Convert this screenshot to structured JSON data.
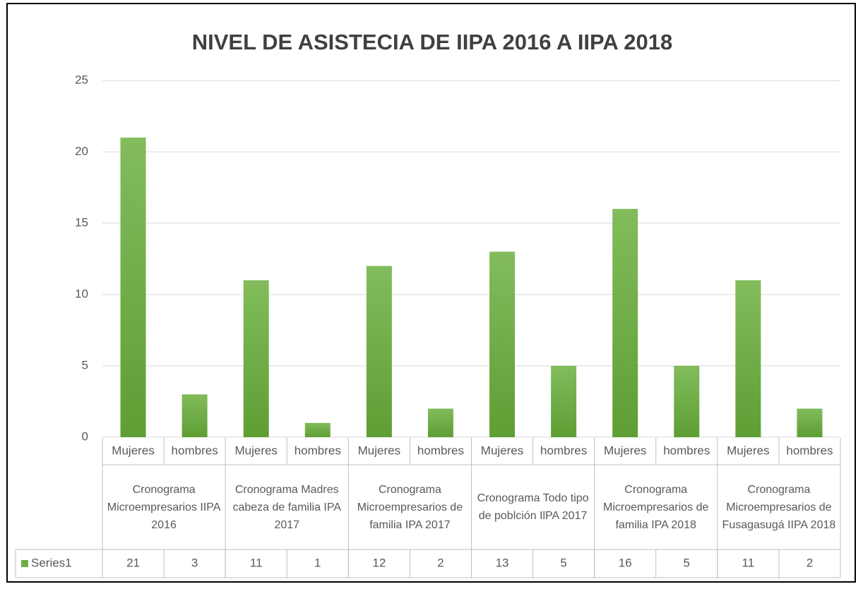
{
  "chart_data": {
    "type": "bar",
    "title": "NIVEL DE ASISTECIA DE IIPA 2016 A IIPA 2018",
    "groups": [
      {
        "name": "Cronograma Microempresarios IIPA 2016",
        "categories": [
          "Mujeres",
          "hombres"
        ]
      },
      {
        "name": "Cronograma Madres cabeza de familia IPA 2017",
        "categories": [
          "Mujeres",
          "hombres"
        ]
      },
      {
        "name": "Cronograma Microempresarios de familia IPA 2017",
        "categories": [
          "Mujeres",
          "hombres"
        ]
      },
      {
        "name": "Cronograma Todo tipo de poblción IlPA 2017",
        "categories": [
          "Mujeres",
          "hombres"
        ]
      },
      {
        "name": "Cronograma Microempresarios de familia IPA 2018",
        "categories": [
          "Mujeres",
          "hombres"
        ]
      },
      {
        "name": "Cronograma Microempresarios de Fusagasugá IIPA 2018",
        "categories": [
          "Mujeres",
          "hombres"
        ]
      }
    ],
    "series": [
      {
        "name": "Series1",
        "color": "#70ad47",
        "values": [
          21,
          3,
          11,
          1,
          12,
          2,
          13,
          5,
          16,
          5,
          11,
          2
        ]
      }
    ],
    "ylim": [
      0,
      25
    ],
    "yticks": [
      0,
      5,
      10,
      15,
      20,
      25
    ],
    "grid": true
  }
}
